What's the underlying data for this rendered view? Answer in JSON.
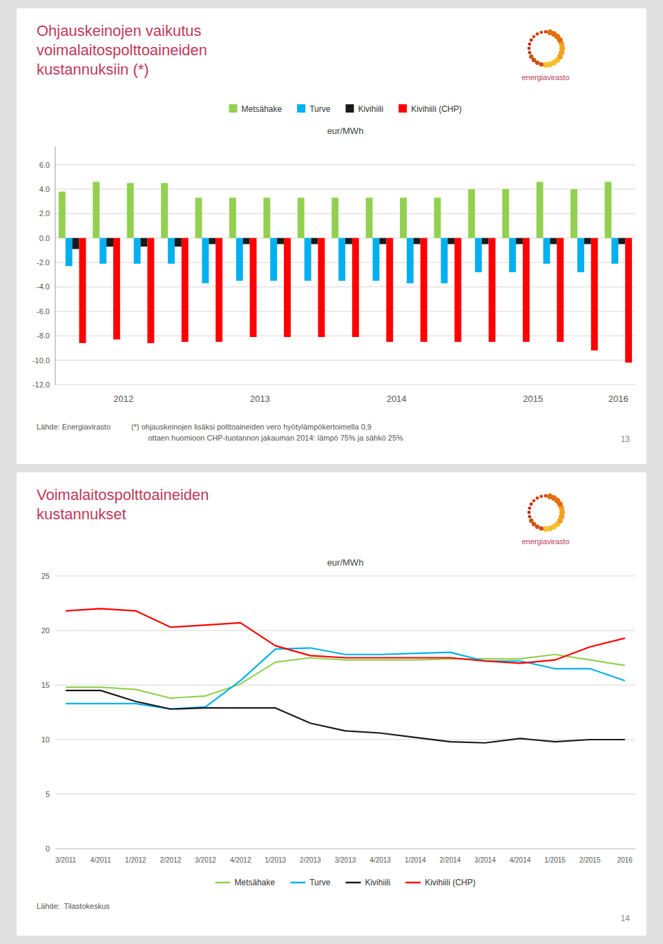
{
  "chart_data": [
    {
      "type": "bar",
      "title": "Ohjauskeinojen vaikutus\nvoimalaitospolttoaineiden\nkustannuksiin (*)",
      "y_label": "eur/MWh",
      "categories": [
        "2012",
        null,
        null,
        null,
        "2013",
        null,
        null,
        null,
        "2014",
        null,
        null,
        null,
        "2015",
        null,
        null,
        null,
        "2016"
      ],
      "series": [
        {
          "name": "Metsähake",
          "color": "#92d050",
          "values": [
            3.8,
            4.6,
            4.5,
            4.5,
            3.3,
            3.3,
            3.3,
            3.3,
            3.3,
            3.3,
            3.3,
            3.3,
            4.0,
            4.0,
            4.6,
            4.0,
            4.6
          ]
        },
        {
          "name": "Turve",
          "color": "#00b0f0",
          "values": [
            -2.3,
            -2.1,
            -2.1,
            -2.1,
            -3.7,
            -3.5,
            -3.5,
            -3.5,
            -3.5,
            -3.5,
            -3.7,
            -3.7,
            -2.8,
            -2.8,
            -2.1,
            -2.8,
            -2.1
          ]
        },
        {
          "name": "Kivihiili",
          "color": "#1a1a1a",
          "values": [
            -0.9,
            -0.7,
            -0.7,
            -0.7,
            -0.5,
            -0.5,
            -0.5,
            -0.5,
            -0.5,
            -0.5,
            -0.5,
            -0.5,
            -0.5,
            -0.5,
            -0.5,
            -0.5,
            -0.5
          ]
        },
        {
          "name": "Kivihiili (CHP)",
          "color": "#ff0000",
          "values": [
            -8.6,
            -8.3,
            -8.6,
            -8.5,
            -8.5,
            -8.1,
            -8.1,
            -8.1,
            -8.1,
            -8.5,
            -8.5,
            -8.5,
            -8.5,
            -8.5,
            -8.5,
            -9.2,
            -10.2
          ]
        }
      ],
      "ylim": [
        -12.0,
        7.5
      ],
      "yticks": [
        {
          "value": 6.0,
          "label": "6.0"
        },
        {
          "value": 4.0,
          "label": "4.0"
        },
        {
          "value": 2.0,
          "label": "2.0"
        },
        {
          "value": 0.0,
          "label": "0.0"
        },
        {
          "value": -2.0,
          "label": "-2.0"
        },
        {
          "value": -4.0,
          "label": "-4.0"
        },
        {
          "value": -6.0,
          "label": "-6.0"
        },
        {
          "value": -8.0,
          "label": "-8.0"
        },
        {
          "value": -10.0,
          "label": "-10.0"
        },
        {
          "value": -12.0,
          "label": "-12.0"
        }
      ],
      "grid": true,
      "legend": "top",
      "annotations": [
        "energiavirasto",
        "Lähde: Energiavirasto",
        "(*) ohjauskeinojen lisäksi polttoaineiden vero hyötylämpökertoimella 0,9\n        ottaen huomioon CHP-tuotannon jakauman 2014: lämpö 75% ja sähkö 25%",
        "13"
      ]
    },
    {
      "type": "line",
      "title": "Voimalaitospolttoaineiden\nkustannukset",
      "y_label": "eur/MWh",
      "categories": [
        "3/2011",
        "4/2011",
        "1/2012",
        "2/2012",
        "3/2012",
        "4/2012",
        "1/2013",
        "2/2013",
        "3/2013",
        "4/2013",
        "1/2014",
        "2/2014",
        "3/2014",
        "4/2014",
        "1/2015",
        "2/2015",
        "2016"
      ],
      "series": [
        {
          "name": "Metsähake",
          "color": "#92d050",
          "values": [
            14.8,
            14.8,
            14.6,
            13.8,
            14.0,
            15.1,
            17.1,
            17.5,
            17.3,
            17.3,
            17.3,
            17.4,
            17.4,
            17.4,
            17.8,
            17.3,
            16.8
          ]
        },
        {
          "name": "Turve",
          "color": "#00b0f0",
          "values": [
            13.3,
            13.3,
            13.3,
            12.8,
            13.0,
            15.4,
            18.3,
            18.4,
            17.8,
            17.8,
            17.9,
            18.0,
            17.2,
            17.2,
            16.5,
            16.5,
            15.4
          ]
        },
        {
          "name": "Kivihiili",
          "color": "#1a1a1a",
          "values": [
            14.5,
            14.5,
            13.5,
            12.8,
            12.9,
            12.9,
            12.9,
            11.5,
            10.8,
            10.6,
            10.2,
            9.8,
            9.7,
            10.1,
            9.8,
            10.0,
            10.0
          ]
        },
        {
          "name": "Kivihiili (CHP)",
          "color": "#ff0000",
          "values": [
            21.8,
            22.0,
            21.8,
            20.3,
            20.5,
            20.7,
            18.6,
            17.7,
            17.5,
            17.5,
            17.5,
            17.5,
            17.2,
            17.0,
            17.3,
            18.5,
            19.3
          ]
        }
      ],
      "ylim": [
        0,
        25
      ],
      "yticks": [
        0,
        5,
        10,
        15,
        20,
        25
      ],
      "grid": true,
      "legend": "bottom",
      "annotations": [
        "energiavirasto",
        "Lähde:  Tilastokeskus",
        "14"
      ]
    }
  ]
}
